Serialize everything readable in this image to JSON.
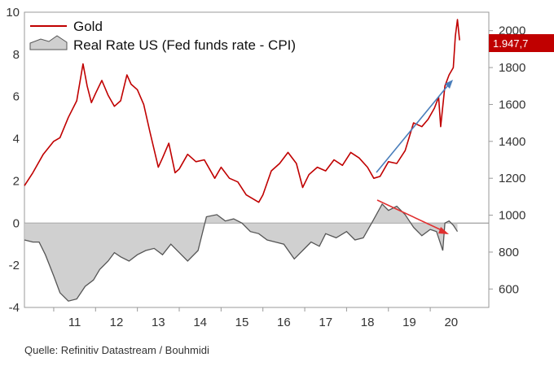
{
  "chart_data": {
    "type": "line",
    "title": "",
    "x_ticks": [
      "11",
      "12",
      "13",
      "14",
      "15",
      "16",
      "17",
      "18",
      "19",
      "20"
    ],
    "x_range": [
      2010.3,
      2021.4
    ],
    "left_axis": {
      "label": "",
      "range": [
        -4,
        10
      ],
      "ticks": [
        "-4",
        "-2",
        "0",
        "2",
        "4",
        "6",
        "8",
        "10"
      ]
    },
    "right_axis": {
      "label": "",
      "range": [
        500,
        2100
      ],
      "ticks": [
        "600",
        "800",
        "1000",
        "1200",
        "1400",
        "1600",
        "1800",
        "2000"
      ]
    },
    "series": [
      {
        "name": "Gold",
        "axis": "right",
        "color": "#c00000",
        "points": [
          [
            2010.3,
            1160
          ],
          [
            2010.5,
            1230
          ],
          [
            2010.75,
            1330
          ],
          [
            2011.0,
            1400
          ],
          [
            2011.15,
            1420
          ],
          [
            2011.35,
            1530
          ],
          [
            2011.55,
            1620
          ],
          [
            2011.7,
            1820
          ],
          [
            2011.8,
            1700
          ],
          [
            2011.9,
            1610
          ],
          [
            2012.0,
            1660
          ],
          [
            2012.15,
            1730
          ],
          [
            2012.3,
            1650
          ],
          [
            2012.45,
            1590
          ],
          [
            2012.6,
            1620
          ],
          [
            2012.75,
            1760
          ],
          [
            2012.85,
            1710
          ],
          [
            2013.0,
            1680
          ],
          [
            2013.15,
            1600
          ],
          [
            2013.3,
            1450
          ],
          [
            2013.5,
            1260
          ],
          [
            2013.6,
            1310
          ],
          [
            2013.75,
            1390
          ],
          [
            2013.9,
            1230
          ],
          [
            2014.0,
            1250
          ],
          [
            2014.2,
            1330
          ],
          [
            2014.4,
            1290
          ],
          [
            2014.6,
            1300
          ],
          [
            2014.85,
            1200
          ],
          [
            2015.0,
            1260
          ],
          [
            2015.2,
            1200
          ],
          [
            2015.4,
            1180
          ],
          [
            2015.6,
            1110
          ],
          [
            2015.9,
            1070
          ],
          [
            2016.0,
            1110
          ],
          [
            2016.2,
            1240
          ],
          [
            2016.4,
            1280
          ],
          [
            2016.6,
            1340
          ],
          [
            2016.8,
            1280
          ],
          [
            2016.95,
            1150
          ],
          [
            2017.1,
            1220
          ],
          [
            2017.3,
            1260
          ],
          [
            2017.5,
            1240
          ],
          [
            2017.7,
            1300
          ],
          [
            2017.9,
            1270
          ],
          [
            2018.1,
            1340
          ],
          [
            2018.3,
            1310
          ],
          [
            2018.5,
            1260
          ],
          [
            2018.65,
            1200
          ],
          [
            2018.8,
            1210
          ],
          [
            2019.0,
            1290
          ],
          [
            2019.2,
            1280
          ],
          [
            2019.4,
            1350
          ],
          [
            2019.6,
            1500
          ],
          [
            2019.8,
            1480
          ],
          [
            2019.95,
            1520
          ],
          [
            2020.1,
            1580
          ],
          [
            2020.2,
            1640
          ],
          [
            2020.25,
            1480
          ],
          [
            2020.35,
            1700
          ],
          [
            2020.45,
            1760
          ],
          [
            2020.55,
            1800
          ],
          [
            2020.6,
            1970
          ],
          [
            2020.65,
            2060
          ],
          [
            2020.7,
            1947.7
          ]
        ]
      },
      {
        "name": "Real Rate US (Fed funds rate - CPI)",
        "axis": "left",
        "color": "#777777",
        "points": [
          [
            2010.3,
            -0.8
          ],
          [
            2010.5,
            -0.9
          ],
          [
            2010.65,
            -0.9
          ],
          [
            2010.8,
            -1.5
          ],
          [
            2011.0,
            -2.5
          ],
          [
            2011.15,
            -3.3
          ],
          [
            2011.35,
            -3.7
          ],
          [
            2011.55,
            -3.6
          ],
          [
            2011.75,
            -3.0
          ],
          [
            2011.95,
            -2.7
          ],
          [
            2012.1,
            -2.2
          ],
          [
            2012.3,
            -1.8
          ],
          [
            2012.45,
            -1.4
          ],
          [
            2012.6,
            -1.6
          ],
          [
            2012.8,
            -1.8
          ],
          [
            2013.0,
            -1.5
          ],
          [
            2013.2,
            -1.3
          ],
          [
            2013.4,
            -1.2
          ],
          [
            2013.6,
            -1.5
          ],
          [
            2013.8,
            -1.0
          ],
          [
            2014.0,
            -1.4
          ],
          [
            2014.2,
            -1.8
          ],
          [
            2014.45,
            -1.3
          ],
          [
            2014.65,
            0.3
          ],
          [
            2014.9,
            0.4
          ],
          [
            2015.1,
            0.1
          ],
          [
            2015.3,
            0.2
          ],
          [
            2015.5,
            0.0
          ],
          [
            2015.7,
            -0.4
          ],
          [
            2015.9,
            -0.5
          ],
          [
            2016.1,
            -0.8
          ],
          [
            2016.3,
            -0.9
          ],
          [
            2016.5,
            -1.0
          ],
          [
            2016.75,
            -1.7
          ],
          [
            2016.95,
            -1.3
          ],
          [
            2017.15,
            -0.9
          ],
          [
            2017.35,
            -1.1
          ],
          [
            2017.5,
            -0.5
          ],
          [
            2017.75,
            -0.7
          ],
          [
            2018.0,
            -0.4
          ],
          [
            2018.2,
            -0.8
          ],
          [
            2018.4,
            -0.7
          ],
          [
            2018.6,
            0.0
          ],
          [
            2018.85,
            0.9
          ],
          [
            2019.0,
            0.6
          ],
          [
            2019.2,
            0.8
          ],
          [
            2019.4,
            0.4
          ],
          [
            2019.6,
            -0.2
          ],
          [
            2019.8,
            -0.6
          ],
          [
            2020.0,
            -0.3
          ],
          [
            2020.15,
            -0.4
          ],
          [
            2020.3,
            -1.3
          ],
          [
            2020.35,
            0.0
          ],
          [
            2020.45,
            0.1
          ],
          [
            2020.55,
            -0.1
          ],
          [
            2020.65,
            -0.4
          ]
        ]
      }
    ],
    "annotations": [
      {
        "type": "arrow",
        "direction": "up",
        "color": "#4a7ebb"
      },
      {
        "type": "arrow",
        "direction": "down",
        "color": "#e03030"
      }
    ],
    "last_value_badge": {
      "label": "1.947,7",
      "color": "#c00000"
    },
    "source": "Quelle: Refinitiv Datastream / Bouhmidi"
  }
}
